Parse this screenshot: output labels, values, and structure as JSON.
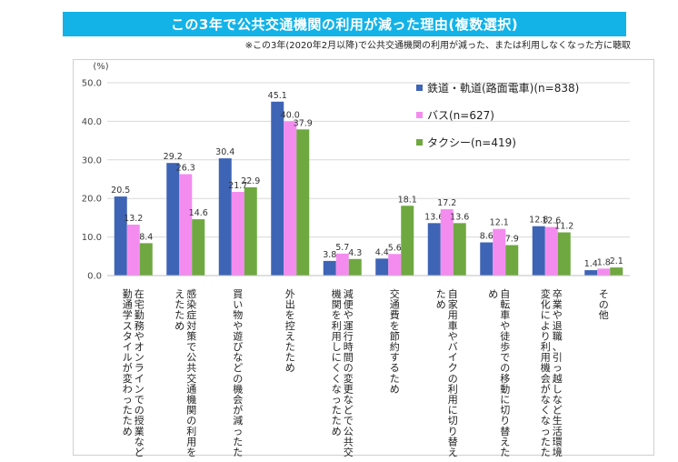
{
  "title": "この3年で公共交通機関の利用が減った理由(複数選択)",
  "subtitle": "※この3年(2020年2月以降)で公共交通機関の利用が減った、または利用しなくなった方に聴取",
  "chart_data": {
    "type": "bar",
    "ylabel": "(%)",
    "ylim": [
      0,
      50
    ],
    "yticks": [
      "0.0",
      "10.0",
      "20.0",
      "30.0",
      "40.0",
      "50.0"
    ],
    "legend_position": "top-right",
    "categories": [
      "在宅勤務やオンラインでの授業など通勤通学スタイルが変わったため",
      "感染症対策で公共交通機関の利用を控えたため",
      "買い物や遊びなどの機会が減ったため",
      "外出を控えたため",
      "減便や運行時間の変更などで公共交通機関を利用しにくくなったため",
      "交通費を節約するため",
      "自家用車やバイクの利用に切り替えたため",
      "自転車や徒歩での移動に切り替えたため",
      "卒業や退職、引っ越しなど生活環境の変化により利用機会がなくなったため",
      "その他"
    ],
    "series": [
      {
        "name": "鉄道・軌道(路面電車)(n=838)",
        "color": "#3e64b5",
        "values": [
          20.5,
          29.2,
          30.4,
          45.1,
          3.8,
          4.4,
          13.6,
          8.6,
          12.8,
          1.4
        ]
      },
      {
        "name": "バス(n=627)",
        "color": "#f48cf0",
        "values": [
          13.2,
          26.3,
          21.7,
          40.0,
          5.7,
          5.6,
          17.2,
          12.1,
          12.6,
          1.8
        ]
      },
      {
        "name": "タクシー(n=419)",
        "color": "#6fa840",
        "values": [
          8.4,
          14.6,
          22.9,
          37.9,
          4.3,
          18.1,
          13.6,
          7.9,
          11.2,
          2.1
        ]
      }
    ]
  }
}
